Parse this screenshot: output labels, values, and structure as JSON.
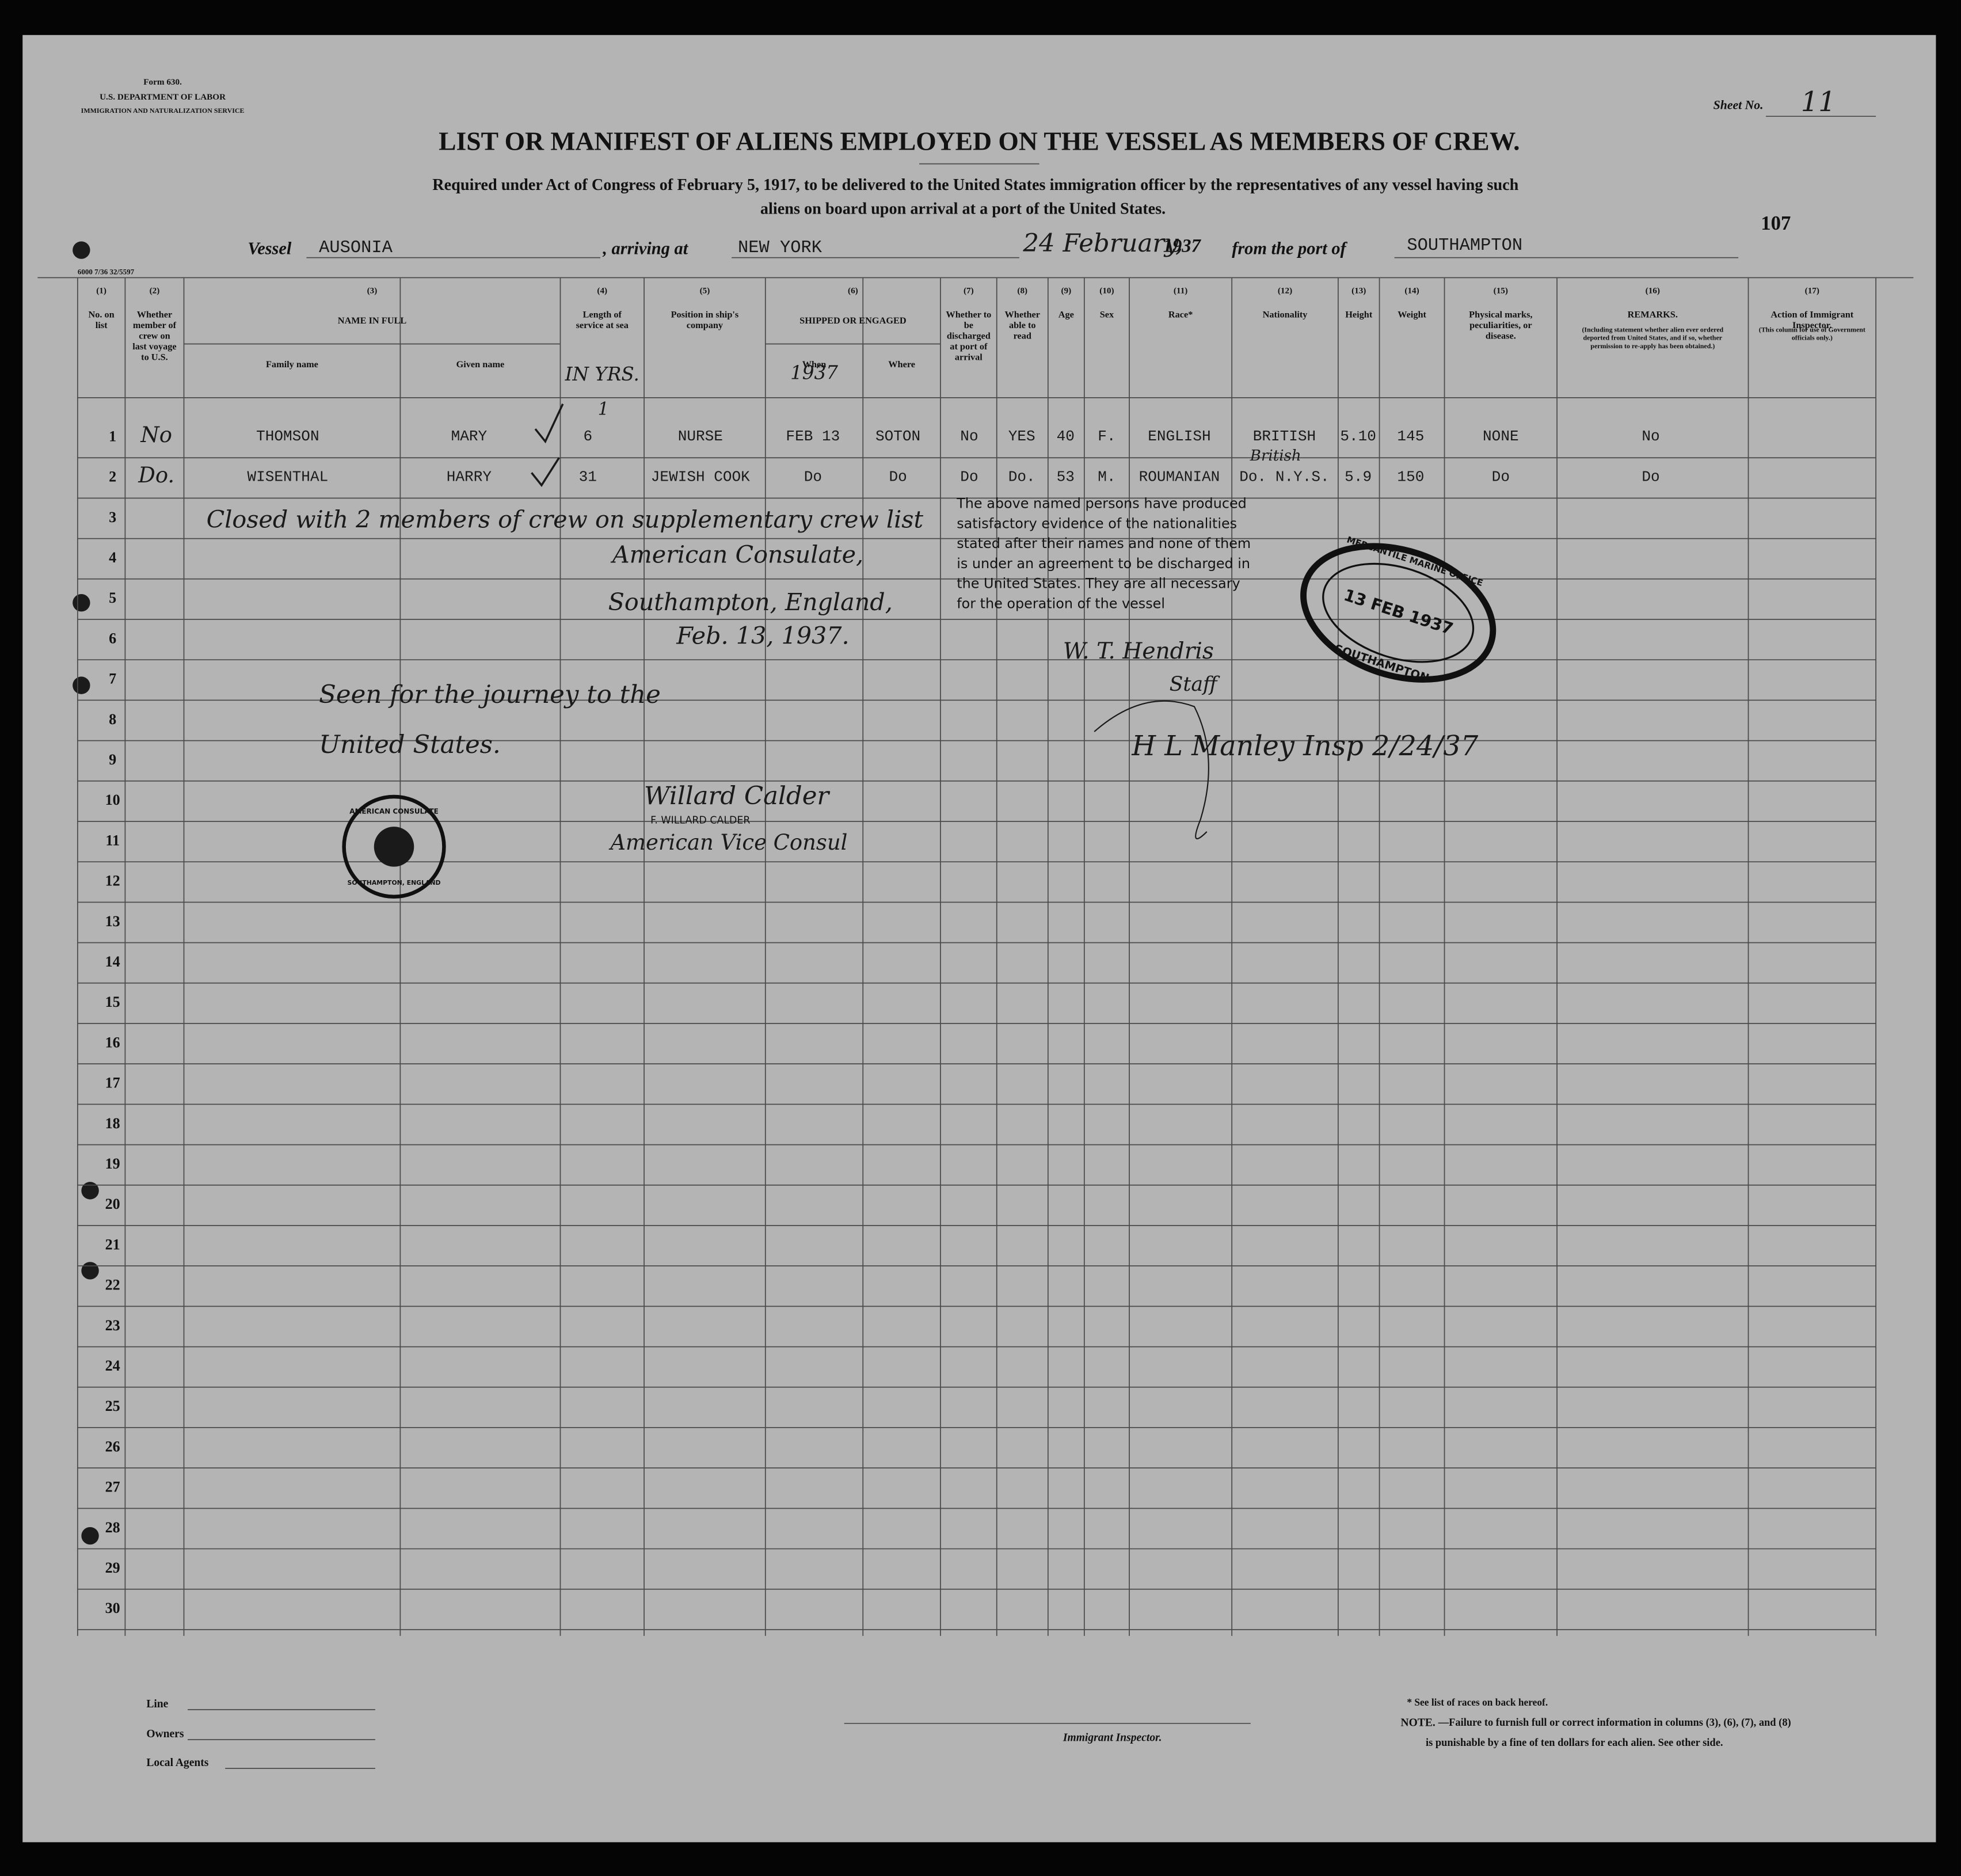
{
  "header": {
    "form": "Form 630.",
    "department": "U.S. DEPARTMENT OF LABOR",
    "service": "IMMIGRATION AND NATURALIZATION SERVICE",
    "sheet_label": "Sheet No.",
    "sheet_no": "11",
    "title": "LIST OR MANIFEST OF ALIENS EMPLOYED ON THE VESSEL AS MEMBERS OF CREW.",
    "subtitle": [
      "Required under Act of Congress of February 5, 1917, to be delivered to the United States immigration officer by the representatives of any vessel having such",
      "aliens on board upon arrival at a port of the United States."
    ],
    "page_no": "107",
    "print_code": "6000 7/36 32/5597"
  },
  "voyage": {
    "vessel_label": "Vessel",
    "vessel": "AUSONIA",
    "arriving_label": ", arriving at",
    "port": "NEW YORK",
    "date": "24 February,",
    "year": "1937",
    "from_label": "from the port of",
    "from_port": "SOUTHAMPTON"
  },
  "table": {
    "columns": [
      {
        "number": "(1)",
        "label": "No. on list"
      },
      {
        "number": "(2)",
        "label": "Whether member of crew on last voyage to U.S."
      },
      {
        "number": "(3)",
        "label": "NAME IN FULL",
        "sub": [
          "Family name",
          "Given name"
        ]
      },
      {
        "number": "(4)",
        "label": "Length of service at sea",
        "note": "IN YRS."
      },
      {
        "number": "(5)",
        "label": "Position in ship's company"
      },
      {
        "number": "(6)",
        "label": "SHIPPED OR ENGAGED",
        "sub": [
          "When",
          "Where"
        ],
        "note": "1937"
      },
      {
        "number": "(7)",
        "label": "Whether to be discharged at port of arrival"
      },
      {
        "number": "(8)",
        "label": "Whether able to read"
      },
      {
        "number": "(9)",
        "label": "Age"
      },
      {
        "number": "(10)",
        "label": "Sex"
      },
      {
        "number": "(11)",
        "label": "Race*"
      },
      {
        "number": "(12)",
        "label": "Nationality"
      },
      {
        "number": "(13)",
        "label": "Height"
      },
      {
        "number": "(14)",
        "label": "Weight"
      },
      {
        "number": "(15)",
        "label": "Physical marks, peculiarities, or disease."
      },
      {
        "number": "(16)",
        "label": "REMARKS.",
        "detail": "(Including statement whether alien ever ordered deported from United States, and if so, whether permission to re-apply has been obtained.)"
      },
      {
        "number": "(17)",
        "label": "Action of Immigrant Inspector.",
        "detail": "(This column for use of Government officials only.)"
      }
    ],
    "row_numbers": [
      "1",
      "2",
      "3",
      "4",
      "5",
      "6",
      "7",
      "8",
      "9",
      "10",
      "11",
      "12",
      "13",
      "14",
      "15",
      "16",
      "17",
      "18",
      "19",
      "20",
      "21",
      "22",
      "23",
      "24",
      "25",
      "26",
      "27",
      "28",
      "29",
      "30"
    ],
    "entries": [
      [
        "No",
        "THOMSON",
        "MARY",
        "6",
        "NURSE",
        "FEB 13",
        "SOTON",
        "No",
        "YES",
        "40",
        "F.",
        "ENGLISH",
        "BRITISH",
        "5.10",
        "145",
        "NONE",
        "No"
      ],
      [
        "Do.",
        "WISENTHAL",
        "HARRY",
        "31",
        "JEWISH COOK",
        "Do",
        "Do",
        "Do",
        "Do.",
        "53",
        "M.",
        "ROUMANIAN",
        "Do. N.Y.S.",
        "5.9",
        "150",
        "Do",
        "Do"
      ]
    ]
  },
  "annotations": {
    "length_mark": "1",
    "nationality_correction": "British",
    "closing_note": "Closed with 2 members of crew on supplementary crew list",
    "consulate_lines": [
      "American Consulate,",
      "Southampton, England,",
      "Feb. 13, 1937."
    ],
    "seen_note": [
      "Seen for the journey to the",
      "United States."
    ],
    "vice_consul_signature": "Willard Calder",
    "vice_consul_name": "F. WILLARD CALDER",
    "vice_consul_title": "American Vice Consul",
    "master_statement": [
      "The above named persons have produced",
      "satisfactory evidence of the nationalities",
      "stated after their names and none of them",
      "is under an agreement to be discharged in",
      "the United States. They are all necessary",
      "for the operation of the vessel"
    ],
    "officer_signatures": [
      "W. T. Hendris",
      "Staff"
    ],
    "inspector_signature": "H L Manley Insp 2/24/37",
    "stamp": [
      "MERCANTILE MARINE OFFICE",
      "13 FEB 1937",
      "SOUTHAMPTON"
    ],
    "seal": [
      "AMERICAN CONSULATE",
      "SOUTHAMPTON, ENGLAND"
    ]
  },
  "footer": {
    "line_label": "Line",
    "owners_label": "Owners",
    "agents_label": "Local Agents",
    "inspector_label": "Immigrant Inspector.",
    "races_note": "* See list of races on back hereof.",
    "note_label": "NOTE.",
    "note": "—Failure to furnish full or correct information in columns (3), (6), (7), and (8)",
    "note_cont": "is punishable by a fine of ten dollars for each alien. See other side."
  }
}
